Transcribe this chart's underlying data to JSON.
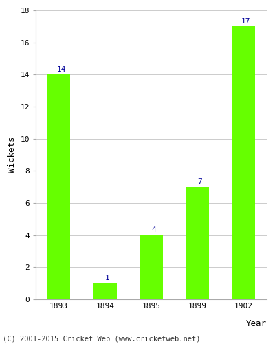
{
  "years": [
    "1893",
    "1894",
    "1895",
    "1899",
    "1902"
  ],
  "values": [
    14,
    1,
    4,
    7,
    17
  ],
  "bar_color": "#66FF00",
  "label_color": "#000099",
  "ylabel": "Wickets",
  "xlabel": "Year",
  "ylim": [
    0,
    18
  ],
  "yticks": [
    0,
    2,
    4,
    6,
    8,
    10,
    12,
    14,
    16,
    18
  ],
  "footnote": "(C) 2001-2015 Cricket Web (www.cricketweb.net)",
  "label_fontsize": 8,
  "axis_label_fontsize": 9,
  "tick_fontsize": 8,
  "footnote_fontsize": 7.5,
  "background_color": "#ffffff",
  "grid_color": "#cccccc"
}
